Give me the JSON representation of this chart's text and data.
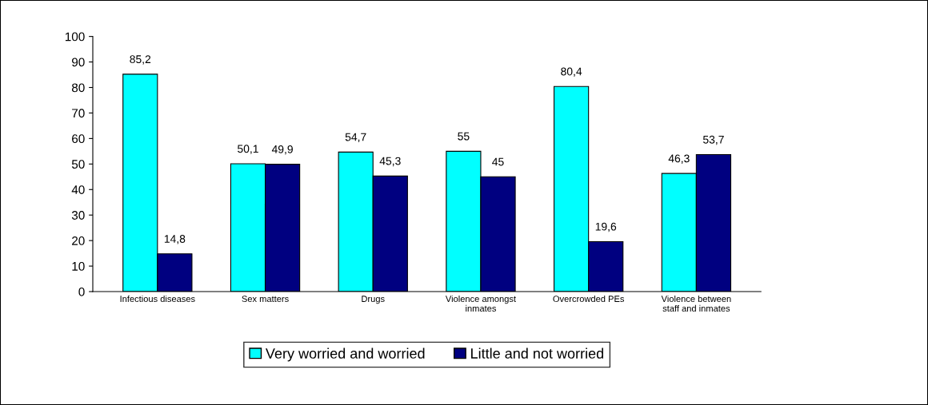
{
  "chart_data": {
    "type": "bar",
    "categories": [
      "Infectious diseases",
      "Sex matters",
      "Drugs",
      "Violence amongst\ninmates",
      "Overcrowded PEs",
      "Violence between\nstaff and inmates"
    ],
    "series": [
      {
        "name": "Very worried and worried",
        "color": "#00ffff",
        "values": [
          85.2,
          50.1,
          54.7,
          55,
          80.4,
          46.3
        ],
        "value_labels": [
          "85,2",
          "50,1",
          "54,7",
          "55",
          "80,4",
          "46,3"
        ]
      },
      {
        "name": "Little and not worried",
        "color": "#000080",
        "values": [
          14.8,
          49.9,
          45.3,
          45,
          19.6,
          53.7
        ],
        "value_labels": [
          "14,8",
          "49,9",
          "45,3",
          "45",
          "19,6",
          "53,7"
        ]
      }
    ],
    "ylim": [
      0,
      100
    ],
    "yticks": [
      0,
      10,
      20,
      30,
      40,
      50,
      60,
      70,
      80,
      90,
      100
    ],
    "grid": false,
    "legend": "bottom"
  }
}
